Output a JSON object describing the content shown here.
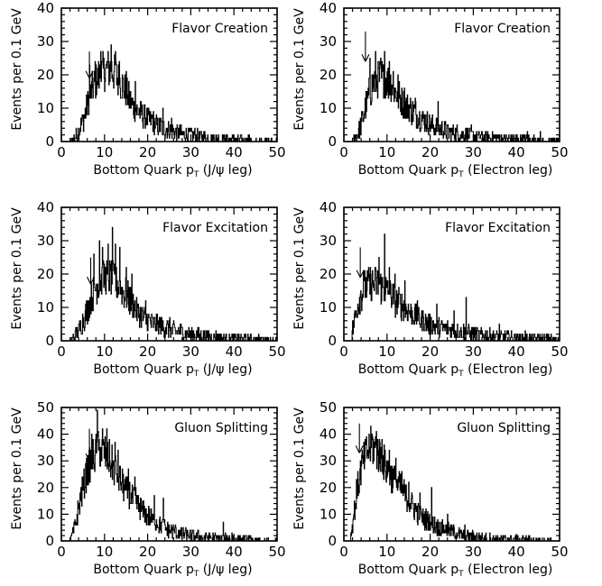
{
  "chart_data": [
    {
      "type": "histogram",
      "panel_title": "Flavor Creation",
      "xlabel": "Bottom Quark p",
      "xlabel_sub": "T",
      "xlabel_suffix": " (J/ψ leg)",
      "ylabel": "Events per 0.1 GeV",
      "xlim": [
        0,
        50
      ],
      "ylim": [
        0,
        40
      ],
      "xticks": [
        "0",
        "10",
        "20",
        "30",
        "40",
        "50"
      ],
      "yticks": [
        "0",
        "10",
        "20",
        "30",
        "40"
      ],
      "arrow_x": 6.5,
      "arrow_top": 27,
      "arrow_tip": 19,
      "envelope": [
        [
          0,
          0
        ],
        [
          2,
          0
        ],
        [
          3,
          1
        ],
        [
          4,
          3
        ],
        [
          5,
          6
        ],
        [
          6,
          11
        ],
        [
          7,
          15
        ],
        [
          8,
          18
        ],
        [
          9,
          20
        ],
        [
          10,
          21
        ],
        [
          11,
          22
        ],
        [
          12,
          21
        ],
        [
          13,
          19
        ],
        [
          14,
          17
        ],
        [
          15,
          15
        ],
        [
          16,
          12
        ],
        [
          17,
          10
        ],
        [
          18,
          9
        ],
        [
          19,
          8
        ],
        [
          20,
          7
        ],
        [
          22,
          5
        ],
        [
          24,
          4
        ],
        [
          26,
          3
        ],
        [
          28,
          2.5
        ],
        [
          30,
          2
        ],
        [
          33,
          1.2
        ],
        [
          36,
          0.8
        ],
        [
          40,
          0.5
        ],
        [
          45,
          0.3
        ],
        [
          50,
          0.2
        ]
      ],
      "spikes": [
        [
          6.5,
          23
        ],
        [
          7.8,
          24
        ],
        [
          9.2,
          27
        ],
        [
          10.4,
          23
        ],
        [
          11.5,
          29
        ],
        [
          12.6,
          27
        ],
        [
          13.4,
          24
        ],
        [
          15,
          21
        ],
        [
          17.2,
          18
        ],
        [
          21.2,
          8
        ],
        [
          23.5,
          10
        ],
        [
          25.5,
          7
        ]
      ]
    },
    {
      "type": "histogram",
      "panel_title": "Flavor Creation",
      "xlabel": "Bottom Quark p",
      "xlabel_sub": "T",
      "xlabel_suffix": " (Electron leg)",
      "ylabel": "Events per 0.1 GeV",
      "xlim": [
        0,
        50
      ],
      "ylim": [
        0,
        40
      ],
      "xticks": [
        "0",
        "10",
        "20",
        "30",
        "40",
        "50"
      ],
      "yticks": [
        "0",
        "10",
        "20",
        "30",
        "40"
      ],
      "arrow_x": 5.0,
      "arrow_top": 33,
      "arrow_tip": 24,
      "envelope": [
        [
          0,
          0
        ],
        [
          2,
          0
        ],
        [
          3,
          2
        ],
        [
          4,
          5
        ],
        [
          5,
          10
        ],
        [
          6,
          15
        ],
        [
          7,
          18
        ],
        [
          8,
          19
        ],
        [
          9,
          19
        ],
        [
          10,
          18
        ],
        [
          11,
          17
        ],
        [
          12,
          15
        ],
        [
          13,
          13
        ],
        [
          14,
          11
        ],
        [
          15,
          10
        ],
        [
          16,
          9
        ],
        [
          17,
          8
        ],
        [
          18,
          7
        ],
        [
          20,
          5
        ],
        [
          22,
          4
        ],
        [
          24,
          3
        ],
        [
          26,
          2.5
        ],
        [
          28,
          2
        ],
        [
          30,
          1.5
        ],
        [
          35,
          1
        ],
        [
          40,
          0.6
        ],
        [
          45,
          0.3
        ],
        [
          50,
          0.2
        ]
      ],
      "spikes": [
        [
          6,
          25
        ],
        [
          7.3,
          27
        ],
        [
          8.5,
          25
        ],
        [
          9.4,
          27
        ],
        [
          10.5,
          24
        ],
        [
          11.4,
          21
        ],
        [
          12.5,
          20
        ],
        [
          14,
          16
        ],
        [
          16.5,
          13
        ],
        [
          21.8,
          12
        ],
        [
          29.5,
          5
        ],
        [
          42.5,
          3
        ],
        [
          45.5,
          3
        ]
      ]
    },
    {
      "type": "histogram",
      "panel_title": "Flavor Excitation",
      "xlabel": "Bottom Quark p",
      "xlabel_sub": "T",
      "xlabel_suffix": " (J/ψ leg)",
      "ylabel": "Events per 0.1 GeV",
      "xlim": [
        0,
        50
      ],
      "ylim": [
        0,
        40
      ],
      "xticks": [
        "0",
        "10",
        "20",
        "30",
        "40",
        "50"
      ],
      "yticks": [
        "0",
        "10",
        "20",
        "30",
        "40"
      ],
      "arrow_x": 6.8,
      "arrow_top": 25,
      "arrow_tip": 17,
      "envelope": [
        [
          0,
          0
        ],
        [
          2,
          0
        ],
        [
          3,
          1
        ],
        [
          4,
          3
        ],
        [
          5,
          6
        ],
        [
          6,
          9
        ],
        [
          7,
          13
        ],
        [
          8,
          16
        ],
        [
          9,
          18
        ],
        [
          10,
          19
        ],
        [
          11,
          19
        ],
        [
          12,
          18
        ],
        [
          13,
          17
        ],
        [
          14,
          15
        ],
        [
          15,
          14
        ],
        [
          16,
          12
        ],
        [
          17,
          10
        ],
        [
          18,
          8
        ],
        [
          19,
          7
        ],
        [
          20,
          6
        ],
        [
          22,
          5
        ],
        [
          24,
          4
        ],
        [
          26,
          3
        ],
        [
          28,
          2.5
        ],
        [
          30,
          2
        ],
        [
          33,
          1.5
        ],
        [
          36,
          1
        ],
        [
          40,
          0.7
        ],
        [
          45,
          0.4
        ],
        [
          50,
          0.2
        ]
      ],
      "spikes": [
        [
          7.5,
          26
        ],
        [
          8.8,
          30
        ],
        [
          9.6,
          28
        ],
        [
          10.8,
          29
        ],
        [
          11.8,
          34
        ],
        [
          12.6,
          29
        ],
        [
          13.5,
          28
        ],
        [
          15,
          22
        ],
        [
          16.4,
          20
        ],
        [
          19.5,
          12
        ],
        [
          25.2,
          7
        ]
      ]
    },
    {
      "type": "histogram",
      "panel_title": "Flavor Excitation",
      "xlabel": "Bottom Quark p",
      "xlabel_sub": "T",
      "xlabel_suffix": " (Electron leg)",
      "ylabel": "Events per 0.1 GeV",
      "xlim": [
        0,
        50
      ],
      "ylim": [
        0,
        40
      ],
      "xticks": [
        "0",
        "10",
        "20",
        "30",
        "40",
        "50"
      ],
      "yticks": [
        "0",
        "10",
        "20",
        "30",
        "40"
      ],
      "arrow_x": 3.8,
      "arrow_top": 28,
      "arrow_tip": 19,
      "envelope": [
        [
          0,
          0
        ],
        [
          1.5,
          0
        ],
        [
          2,
          3
        ],
        [
          3,
          10
        ],
        [
          4,
          14
        ],
        [
          5,
          16
        ],
        [
          6,
          17
        ],
        [
          7,
          17
        ],
        [
          8,
          17
        ],
        [
          9,
          16
        ],
        [
          10,
          15
        ],
        [
          11,
          14
        ],
        [
          12,
          12
        ],
        [
          13,
          11
        ],
        [
          14,
          10
        ],
        [
          15,
          9
        ],
        [
          16,
          8
        ],
        [
          17,
          7
        ],
        [
          18,
          6
        ],
        [
          20,
          5
        ],
        [
          22,
          4
        ],
        [
          24,
          3.5
        ],
        [
          26,
          3
        ],
        [
          28,
          2.5
        ],
        [
          30,
          2
        ],
        [
          33,
          1.5
        ],
        [
          36,
          1.2
        ],
        [
          40,
          0.8
        ],
        [
          45,
          0.5
        ],
        [
          50,
          0.3
        ]
      ],
      "spikes": [
        [
          4.6,
          21
        ],
        [
          6.2,
          20
        ],
        [
          8.2,
          25
        ],
        [
          9.4,
          32
        ],
        [
          10.6,
          22
        ],
        [
          11.8,
          20
        ],
        [
          14.2,
          18
        ],
        [
          17,
          12
        ],
        [
          21.5,
          11
        ],
        [
          25.5,
          9
        ],
        [
          28.4,
          13
        ],
        [
          36,
          5
        ],
        [
          42,
          3
        ]
      ]
    },
    {
      "type": "histogram",
      "panel_title": "Gluon Splitting",
      "xlabel": "Bottom Quark p",
      "xlabel_sub": "T",
      "xlabel_suffix": " (J/ψ leg)",
      "ylabel": "Events per 0.1 GeV",
      "xlim": [
        0,
        50
      ],
      "ylim": [
        0,
        50
      ],
      "xticks": [
        "0",
        "10",
        "20",
        "30",
        "40",
        "50"
      ],
      "yticks": [
        "0",
        "10",
        "20",
        "30",
        "40",
        "50"
      ],
      "arrow_x": 6.5,
      "arrow_top": 42,
      "arrow_tip": 30,
      "envelope": [
        [
          0,
          0
        ],
        [
          2,
          0
        ],
        [
          3,
          4
        ],
        [
          4,
          12
        ],
        [
          5,
          20
        ],
        [
          6,
          26
        ],
        [
          7,
          30
        ],
        [
          8,
          33
        ],
        [
          9,
          34
        ],
        [
          10,
          33
        ],
        [
          11,
          31
        ],
        [
          12,
          28
        ],
        [
          13,
          25
        ],
        [
          14,
          22
        ],
        [
          15,
          19
        ],
        [
          16,
          17
        ],
        [
          17,
          15
        ],
        [
          18,
          13
        ],
        [
          19,
          11
        ],
        [
          20,
          9.5
        ],
        [
          22,
          7
        ],
        [
          24,
          5
        ],
        [
          26,
          3.5
        ],
        [
          28,
          2.5
        ],
        [
          30,
          2
        ],
        [
          33,
          1.4
        ],
        [
          36,
          1
        ],
        [
          40,
          0.6
        ],
        [
          45,
          0.3
        ],
        [
          50,
          0.1
        ]
      ],
      "spikes": [
        [
          7,
          40
        ],
        [
          8.3,
          49
        ],
        [
          9.6,
          42
        ],
        [
          10.6,
          42
        ],
        [
          12.4,
          37
        ],
        [
          13.2,
          34
        ],
        [
          15.5,
          27
        ],
        [
          17,
          24
        ],
        [
          21.5,
          17
        ],
        [
          23.6,
          16
        ],
        [
          26.3,
          5
        ],
        [
          37.5,
          7
        ],
        [
          39.5,
          3
        ]
      ]
    },
    {
      "type": "histogram",
      "panel_title": "Gluon Splitting",
      "xlabel": "Bottom Quark p",
      "xlabel_sub": "T",
      "xlabel_suffix": " (Electron leg)",
      "ylabel": "Events per 0.1 GeV",
      "xlim": [
        0,
        50
      ],
      "ylim": [
        0,
        50
      ],
      "xticks": [
        "0",
        "10",
        "20",
        "30",
        "40",
        "50"
      ],
      "yticks": [
        "0",
        "10",
        "20",
        "30",
        "40",
        "50"
      ],
      "arrow_x": 3.6,
      "arrow_top": 44,
      "arrow_tip": 33,
      "envelope": [
        [
          0,
          0
        ],
        [
          1.5,
          0
        ],
        [
          2,
          6
        ],
        [
          3,
          18
        ],
        [
          4,
          27
        ],
        [
          5,
          32
        ],
        [
          6,
          35
        ],
        [
          7,
          35
        ],
        [
          8,
          33
        ],
        [
          9,
          30
        ],
        [
          10,
          27
        ],
        [
          11,
          24
        ],
        [
          12,
          22
        ],
        [
          13,
          20
        ],
        [
          14,
          18
        ],
        [
          15,
          15
        ],
        [
          16,
          13
        ],
        [
          17,
          11
        ],
        [
          18,
          9
        ],
        [
          19,
          8
        ],
        [
          20,
          7
        ],
        [
          22,
          5
        ],
        [
          24,
          4
        ],
        [
          26,
          3
        ],
        [
          28,
          2
        ],
        [
          30,
          1.5
        ],
        [
          33,
          1
        ],
        [
          36,
          0.7
        ],
        [
          40,
          0.5
        ],
        [
          45,
          0.3
        ],
        [
          50,
          0.1
        ]
      ],
      "spikes": [
        [
          5,
          36
        ],
        [
          6.5,
          40
        ],
        [
          7.5,
          41
        ],
        [
          8.8,
          38
        ],
        [
          10.6,
          34
        ],
        [
          12,
          31
        ],
        [
          13.4,
          26
        ],
        [
          15,
          22
        ],
        [
          17.6,
          18
        ],
        [
          20.4,
          20
        ],
        [
          24,
          10
        ],
        [
          28,
          6
        ]
      ]
    }
  ]
}
